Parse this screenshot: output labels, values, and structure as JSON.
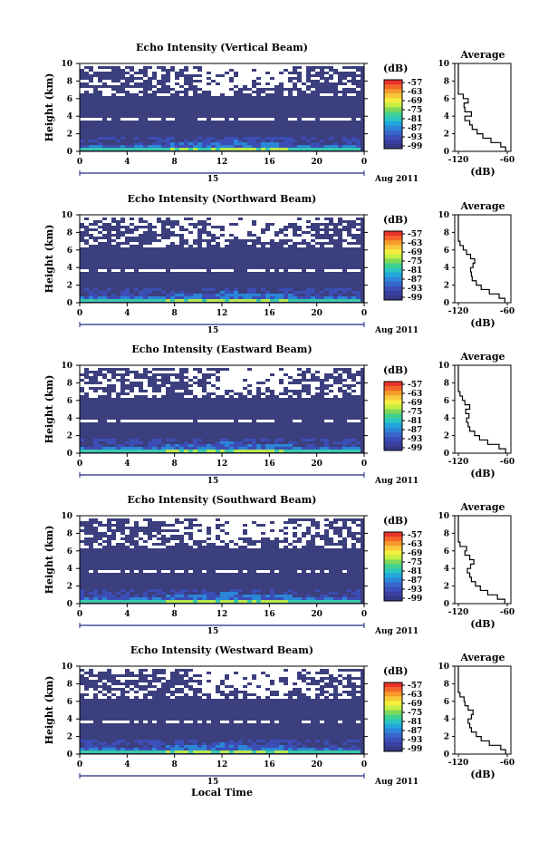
{
  "figure": {
    "x_axis_title": "Local Time",
    "date_day": "15",
    "date_month_year": "Aug 2011",
    "colorbar_unit": "(dB)",
    "colorbar_ticks": [
      "-57",
      "-63",
      "-69",
      "-75",
      "-81",
      "-87",
      "-93",
      "-99"
    ],
    "colorbar_colors": [
      "#e8322a",
      "#f4652a",
      "#f59a2b",
      "#f7c83a",
      "#f5ee3e",
      "#c6ef42",
      "#7fd95b",
      "#3fd18e",
      "#2bc6c0",
      "#22a6dc",
      "#2b86d8",
      "#3867cc",
      "#3b4fb8",
      "#3a3fa0",
      "#343a86"
    ],
    "panel_colors": {
      "bg": "#3b3f7e",
      "deep": "#3c4db5",
      "mid": "#2b86d8",
      "hot": "#37c9a8",
      "hottest": "#b8e84a",
      "gap": "#ffffff"
    },
    "avg_title": "Average",
    "avg_xlabel": "(dB)"
  },
  "chart_data": [
    {
      "type": "heatmap",
      "title": "Echo Intensity (Vertical Beam)",
      "xlabel": "",
      "ylabel": "Height (km)",
      "xlim": [
        0,
        24
      ],
      "ylim": [
        0,
        10
      ],
      "x_ticks": [
        "0",
        "4",
        "8",
        "12",
        "16",
        "20",
        "0"
      ],
      "y_ticks": [
        "0",
        "2",
        "4",
        "6",
        "8",
        "10"
      ],
      "average_profile": {
        "xlim": [
          -120,
          -60
        ],
        "x_ticks": [
          "-120",
          "-60"
        ],
        "y_ticks": [
          "0",
          "2",
          "4",
          "6",
          "8",
          "10"
        ],
        "height_km": [
          0,
          0.5,
          1,
          1.5,
          2,
          2.5,
          3,
          3.5,
          4,
          4.5,
          5,
          5.5,
          6,
          6.5,
          7,
          8,
          9,
          10
        ],
        "intensity_db": [
          -62,
          -68,
          -80,
          -90,
          -97,
          -103,
          -106,
          -112,
          -104,
          -112,
          -113,
          -108,
          -114,
          -120,
          -120,
          -120,
          -120,
          -120
        ]
      }
    },
    {
      "type": "heatmap",
      "title": "Echo Intensity (Northward Beam)",
      "xlabel": "",
      "ylabel": "Height (km)",
      "xlim": [
        0,
        24
      ],
      "ylim": [
        0,
        10
      ],
      "x_ticks": [
        "0",
        "4",
        "8",
        "12",
        "16",
        "20",
        "0"
      ],
      "y_ticks": [
        "0",
        "2",
        "4",
        "6",
        "8",
        "10"
      ],
      "average_profile": {
        "xlim": [
          -120,
          -60
        ],
        "x_ticks": [
          "-120",
          "-60"
        ],
        "y_ticks": [
          "0",
          "2",
          "4",
          "6",
          "8",
          "10"
        ],
        "height_km": [
          0,
          0.5,
          1,
          1.5,
          2,
          2.5,
          3,
          3.5,
          4,
          4.5,
          5,
          5.5,
          6,
          6.5,
          7,
          8,
          9,
          10
        ],
        "intensity_db": [
          -63,
          -70,
          -82,
          -92,
          -98,
          -103,
          -104,
          -105,
          -102,
          -100,
          -105,
          -110,
          -114,
          -118,
          -120,
          -120,
          -120,
          -120
        ]
      }
    },
    {
      "type": "heatmap",
      "title": "Echo Intensity (Eastward Beam)",
      "xlabel": "",
      "ylabel": "Height (km)",
      "xlim": [
        0,
        24
      ],
      "ylim": [
        0,
        10
      ],
      "x_ticks": [
        "0",
        "4",
        "8",
        "12",
        "16",
        "20",
        "0"
      ],
      "y_ticks": [
        "0",
        "2",
        "4",
        "6",
        "8",
        "10"
      ],
      "average_profile": {
        "xlim": [
          -120,
          -60
        ],
        "x_ticks": [
          "-120",
          "-60"
        ],
        "y_ticks": [
          "0",
          "2",
          "4",
          "6",
          "8",
          "10"
        ],
        "height_km": [
          0,
          0.5,
          1,
          1.5,
          2,
          2.5,
          3,
          3.5,
          4,
          4.5,
          5,
          5.5,
          6,
          6.5,
          7,
          8,
          9,
          10
        ],
        "intensity_db": [
          -62,
          -70,
          -84,
          -94,
          -100,
          -106,
          -108,
          -110,
          -107,
          -111,
          -106,
          -112,
          -115,
          -118,
          -120,
          -120,
          -120,
          -120
        ]
      }
    },
    {
      "type": "heatmap",
      "title": "Echo Intensity (Southward Beam)",
      "xlabel": "",
      "ylabel": "Height (km)",
      "xlim": [
        0,
        24
      ],
      "ylim": [
        0,
        10
      ],
      "x_ticks": [
        "0",
        "4",
        "8",
        "12",
        "16",
        "20",
        "0"
      ],
      "y_ticks": [
        "0",
        "2",
        "4",
        "6",
        "8",
        "10"
      ],
      "average_profile": {
        "xlim": [
          -120,
          -60
        ],
        "x_ticks": [
          "-120",
          "-60"
        ],
        "y_ticks": [
          "0",
          "2",
          "4",
          "6",
          "8",
          "10"
        ],
        "height_km": [
          0,
          0.5,
          1,
          1.5,
          2,
          2.5,
          3,
          3.5,
          4,
          4.5,
          5,
          5.5,
          6,
          6.5,
          7,
          8,
          9,
          10
        ],
        "intensity_db": [
          -63,
          -72,
          -84,
          -93,
          -99,
          -104,
          -106,
          -109,
          -105,
          -101,
          -106,
          -112,
          -110,
          -118,
          -120,
          -120,
          -120,
          -120
        ]
      }
    },
    {
      "type": "heatmap",
      "title": "Echo Intensity (Westward Beam)",
      "xlabel": "Local Time",
      "ylabel": "Height (km)",
      "xlim": [
        0,
        24
      ],
      "ylim": [
        0,
        10
      ],
      "x_ticks": [
        "0",
        "4",
        "8",
        "12",
        "16",
        "20",
        "0"
      ],
      "y_ticks": [
        "0",
        "2",
        "4",
        "6",
        "8",
        "10"
      ],
      "average_profile": {
        "xlim": [
          -120,
          -60
        ],
        "x_ticks": [
          "-120",
          "-60"
        ],
        "y_ticks": [
          "0",
          "2",
          "4",
          "6",
          "8",
          "10"
        ],
        "height_km": [
          0,
          0.5,
          1,
          1.5,
          2,
          2.5,
          3,
          3.5,
          4,
          4.5,
          5,
          5.5,
          6,
          6.5,
          7,
          8,
          9,
          10
        ],
        "intensity_db": [
          -62,
          -68,
          -82,
          -92,
          -98,
          -104,
          -106,
          -108,
          -104,
          -102,
          -108,
          -112,
          -113,
          -118,
          -120,
          -120,
          -120,
          -120
        ]
      }
    }
  ]
}
